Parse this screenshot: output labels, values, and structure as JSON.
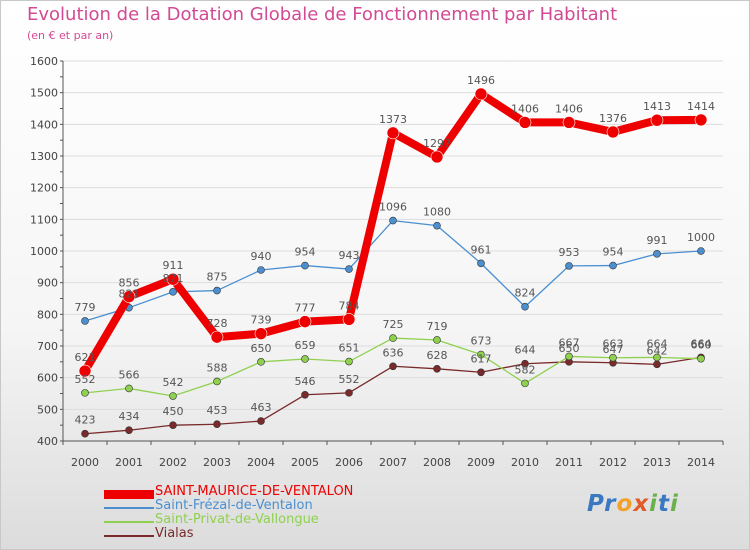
{
  "header": {
    "title": "Evolution de la Dotation Globale de Fonctionnement par Habitant",
    "subtitle": "(en € et par an)"
  },
  "colors": {
    "title": "#d24a93",
    "grid": "#dddddd",
    "axis": "#555555"
  },
  "logo": {
    "text": "Proxiti"
  },
  "chart_data": {
    "type": "line",
    "title": "Evolution de la Dotation Globale de Fonctionnement par Habitant",
    "subtitle": "(en € et par an)",
    "xlabel": "",
    "ylabel": "",
    "x": [
      "2000",
      "2001",
      "2002",
      "2003",
      "2004",
      "2005",
      "2006",
      "2007",
      "2008",
      "2009",
      "2010",
      "2011",
      "2012",
      "2013",
      "2014"
    ],
    "ylim": [
      400,
      1600
    ],
    "yticks": [
      400,
      500,
      600,
      700,
      800,
      900,
      1000,
      1100,
      1200,
      1300,
      1400,
      1500,
      1600
    ],
    "grid": true,
    "legend_position": "bottom-left",
    "series": [
      {
        "name": "SAINT-MAURICE-DE-VENTALON",
        "color": "#ee0000",
        "values": [
          621,
          856,
          911,
          728,
          739,
          777,
          784,
          1373,
          1297,
          1496,
          1406,
          1406,
          1376,
          1413,
          1414
        ],
        "labels": [
          "621",
          "856",
          "911",
          "728",
          "739",
          "777",
          "784",
          "1373",
          "1297",
          "1496",
          "1406",
          "1406",
          "1376",
          "1413",
          "1414"
        ]
      },
      {
        "name": "Saint-Frézal-de-Ventalon",
        "color": "#4b8fd1",
        "values": [
          779,
          821,
          871,
          875,
          940,
          954,
          943,
          1096,
          1080,
          961,
          824,
          953,
          954,
          991,
          1000
        ],
        "labels": [
          "779",
          "821",
          "871",
          "875",
          "940",
          "954",
          "943",
          "1096",
          "1080",
          "961",
          "824",
          "953",
          "954",
          "991",
          "1000"
        ]
      },
      {
        "name": "Saint-Privat-de-Vallongue",
        "color": "#8fd14f",
        "values": [
          552,
          566,
          542,
          588,
          650,
          659,
          651,
          725,
          719,
          673,
          582,
          667,
          663,
          664,
          660
        ],
        "labels": [
          "552",
          "566",
          "542",
          "588",
          "650",
          "659",
          "651",
          "725",
          "719",
          "673",
          "582",
          "667",
          "663",
          "664",
          "660"
        ]
      },
      {
        "name": "Vialas",
        "color": "#7a2a2a",
        "values": [
          423,
          434,
          450,
          453,
          463,
          546,
          552,
          636,
          628,
          617,
          644,
          650,
          647,
          642,
          664
        ],
        "labels": [
          "423",
          "434",
          "450",
          "453",
          "463",
          "546",
          "552",
          "636",
          "628",
          "617",
          "644",
          "650",
          "647",
          "642",
          "664"
        ]
      }
    ]
  }
}
